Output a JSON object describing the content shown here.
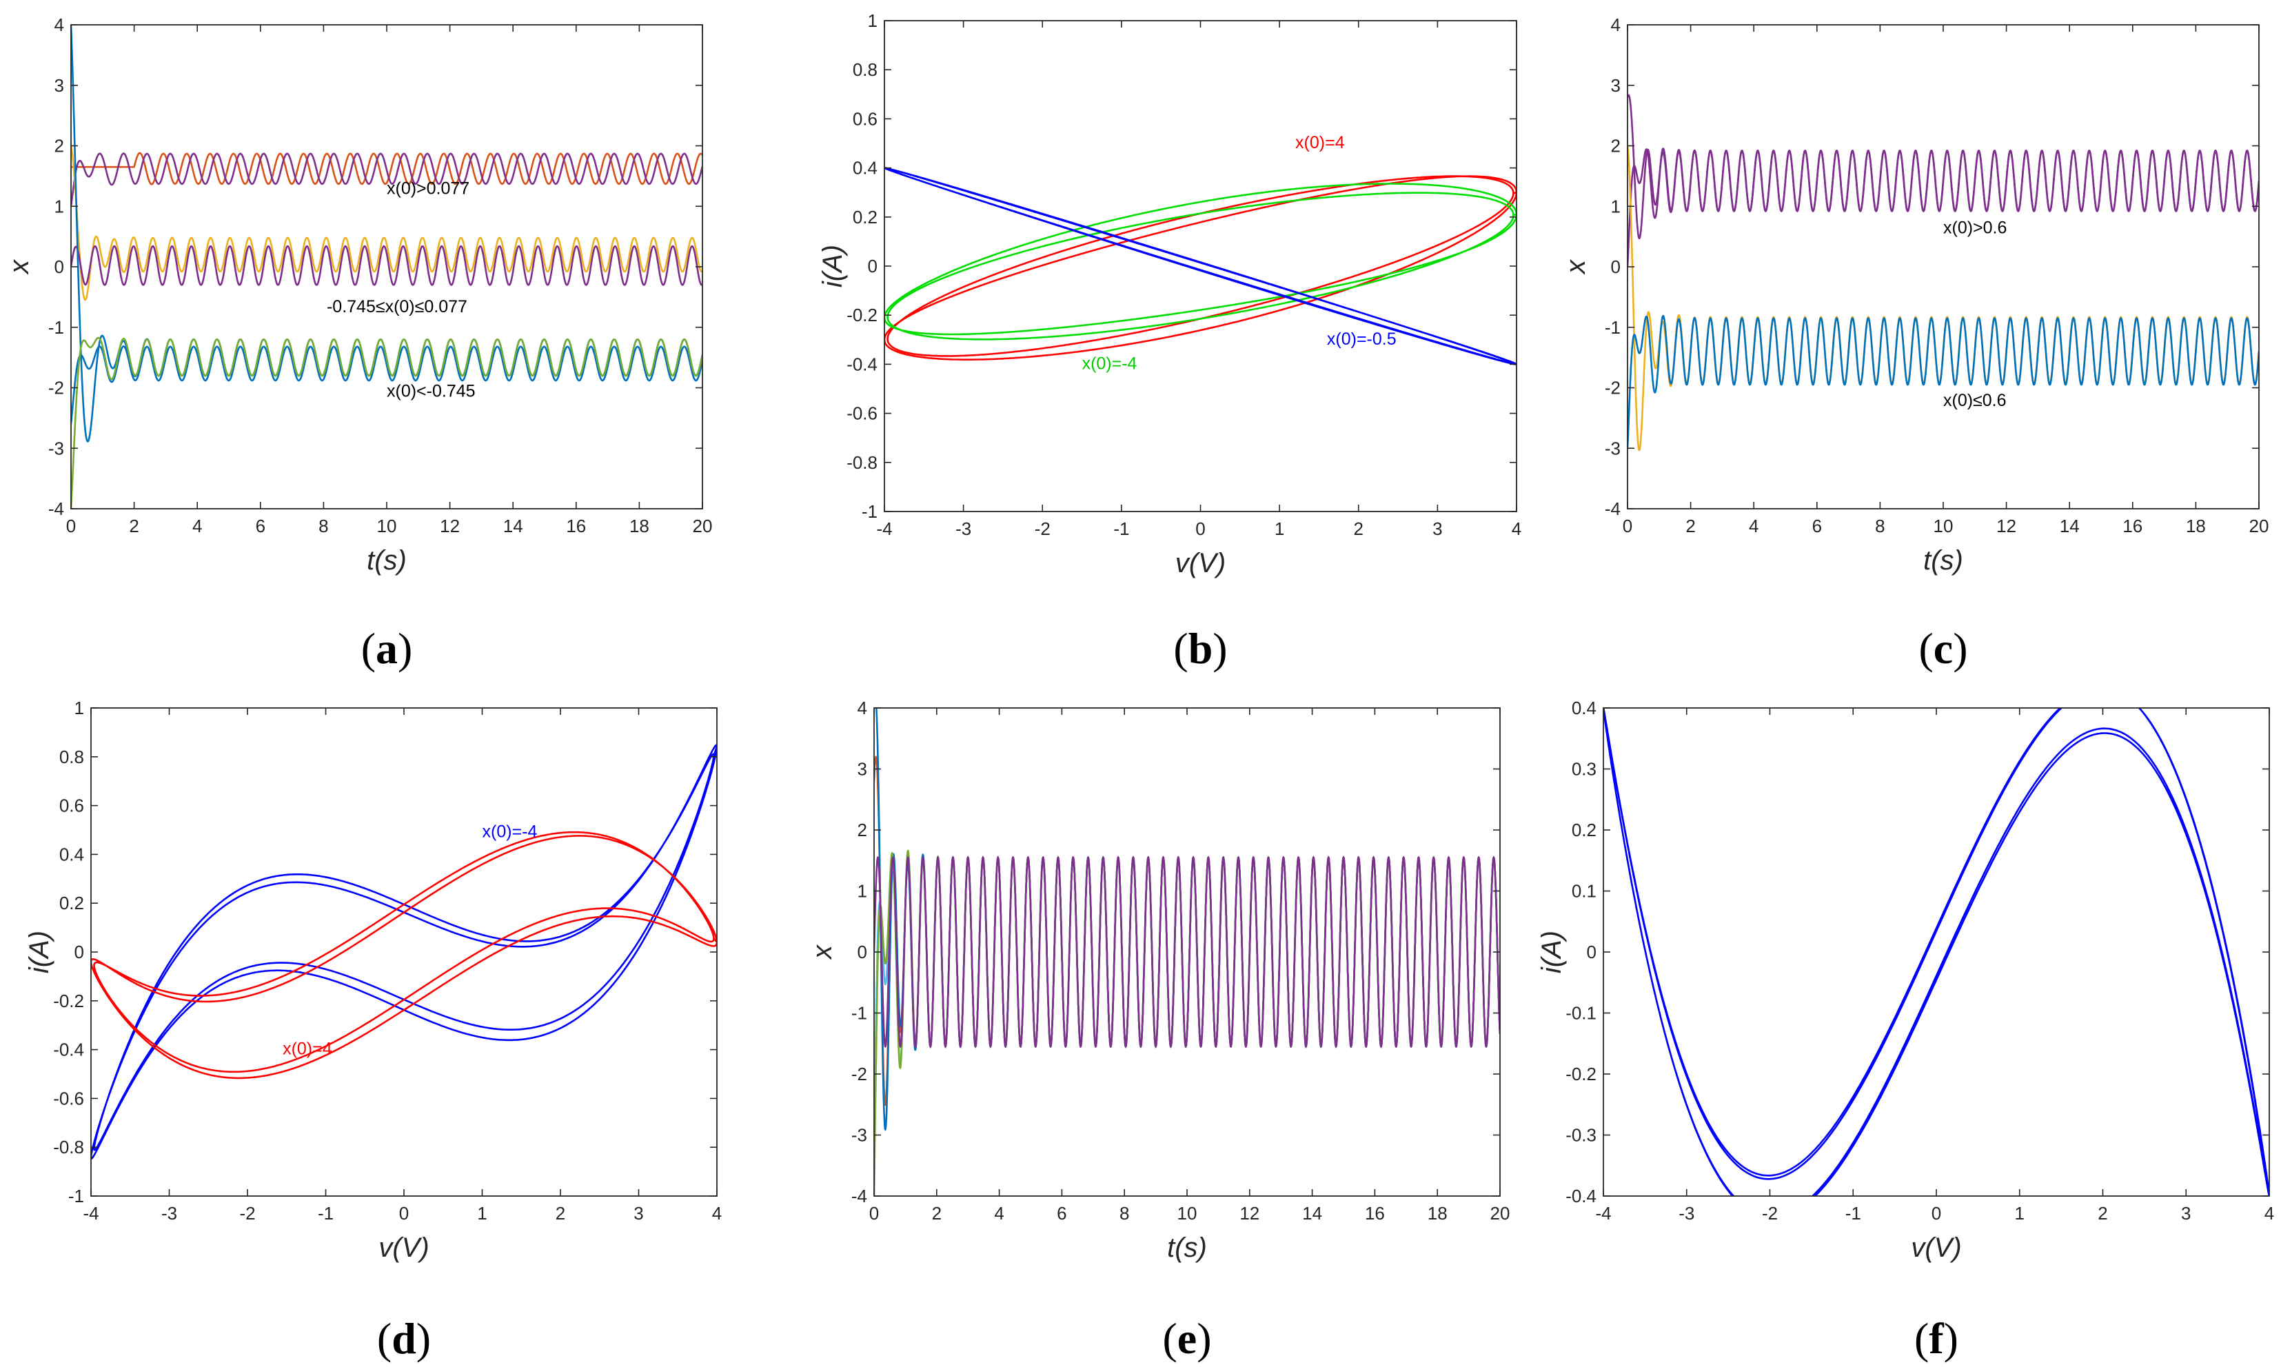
{
  "chart_data": [
    {
      "id": "a",
      "type": "line",
      "caption": "a",
      "xlabel": "t(s)",
      "ylabel": "x",
      "xlim": [
        0,
        20
      ],
      "ylim": [
        -4,
        4
      ],
      "xticks": [
        0,
        2,
        4,
        6,
        8,
        10,
        12,
        14,
        16,
        18,
        20
      ],
      "yticks": [
        -4,
        -3,
        -2,
        -1,
        0,
        1,
        2,
        3,
        4
      ],
      "grid": false,
      "series": [
        {
          "color": "#d95319",
          "equilibrium": 1.62,
          "amplitude": 0.25,
          "period": 0.74,
          "t_start": 2.0,
          "start_value": 1.65
        },
        {
          "color": "#7e2f8e",
          "equilibrium": 1.62,
          "amplitude": 0.25,
          "period": 0.74,
          "t_start": 0.0,
          "start_value": 1.0
        },
        {
          "color": "#edb120",
          "equilibrium": 0.2,
          "amplitude": 0.28,
          "period": 0.61,
          "t_start": 0.0,
          "start_value": 2.0
        },
        {
          "color": "#7e2f8e",
          "equilibrium": 0.02,
          "amplitude": 0.32,
          "period": 0.61,
          "t_start": 0.0,
          "start_value": 0.0
        },
        {
          "color": "#0072bd",
          "equilibrium": -1.6,
          "amplitude": 0.28,
          "period": 0.74,
          "t_start": 0.0,
          "start_value": -2.6
        },
        {
          "color": "#0072bd",
          "equilibrium": -1.5,
          "amplitude": 0.3,
          "period": 0.74,
          "t_start": 0.0,
          "start_value": 4.0
        },
        {
          "color": "#77ac30",
          "equilibrium": -1.5,
          "amplitude": 0.3,
          "period": 0.74,
          "t_start": 0.0,
          "start_value": -4.0
        }
      ],
      "annotations": [
        {
          "text": "x(0)>0.077",
          "x": 10.0,
          "y": 1.2,
          "color": "#000000"
        },
        {
          "text": "-0.745≤x(0)≤0.077",
          "x": 8.1,
          "y": -0.75,
          "color": "#000000"
        },
        {
          "text": "x(0)<-0.745",
          "x": 10.0,
          "y": -2.15,
          "color": "#000000"
        }
      ]
    },
    {
      "id": "b",
      "type": "line",
      "caption": "b",
      "xlabel": "v(V)",
      "ylabel": "i(A)",
      "xlim": [
        -4,
        4
      ],
      "ylim": [
        -1,
        1
      ],
      "xticks": [
        -4,
        -3,
        -2,
        -1,
        0,
        1,
        2,
        3,
        4
      ],
      "yticks": [
        -1,
        -0.8,
        -0.6,
        -0.4,
        -0.2,
        0,
        0.2,
        0.4,
        0.6,
        0.8,
        1
      ],
      "grid": false,
      "series": [
        {
          "color": "#ff0000",
          "cubic": 0.0,
          "linear": 0.075,
          "loop": 0.055,
          "phase_deg": 70
        },
        {
          "color": "#00dd00",
          "cubic": 0.0,
          "linear": 0.0525,
          "loop": 0.055,
          "phase_deg": -70
        },
        {
          "color": "#0000ff",
          "cubic": 0.0,
          "linear": -0.1,
          "loop": 0.004,
          "phase_deg": 45
        }
      ],
      "annotations": [
        {
          "text": "x(0)=4",
          "x": 1.2,
          "y": 0.48,
          "color": "#ff0000"
        },
        {
          "text": "x(0)=-4",
          "x": -1.5,
          "y": -0.42,
          "color": "#00cc00"
        },
        {
          "text": "x(0)=-0.5",
          "x": 1.6,
          "y": -0.32,
          "color": "#0000ff"
        }
      ]
    },
    {
      "id": "c",
      "type": "line",
      "caption": "c",
      "xlabel": "t(s)",
      "ylabel": "x",
      "xlim": [
        0,
        20
      ],
      "ylim": [
        -4,
        4
      ],
      "xticks": [
        0,
        2,
        4,
        6,
        8,
        10,
        12,
        14,
        16,
        18,
        20
      ],
      "yticks": [
        -4,
        -3,
        -2,
        -1,
        0,
        1,
        2,
        3,
        4
      ],
      "grid": false,
      "series": [
        {
          "color": "#7e2f8e",
          "equilibrium": 1.42,
          "amplitude": 0.5,
          "period": 0.5,
          "t_start": 0.0,
          "start_value": 0.0
        },
        {
          "color": "#7e2f8e",
          "equilibrium": 1.42,
          "amplitude": 0.5,
          "period": 0.5,
          "t_start": 0.0,
          "start_value": 2.8
        },
        {
          "color": "#edb120",
          "equilibrium": -1.38,
          "amplitude": 0.55,
          "period": 0.5,
          "t_start": 0.0,
          "start_value": 2.0
        },
        {
          "color": "#0072bd",
          "equilibrium": -1.4,
          "amplitude": 0.55,
          "period": 0.5,
          "t_start": 0.0,
          "start_value": -3.0
        }
      ],
      "annotations": [
        {
          "text": "x(0)>0.6",
          "x": 10.0,
          "y": 0.55,
          "color": "#000000"
        },
        {
          "text": "x(0)≤0.6",
          "x": 10.0,
          "y": -2.3,
          "color": "#000000"
        }
      ]
    },
    {
      "id": "d",
      "type": "line",
      "caption": "d",
      "xlabel": "v(V)",
      "ylabel": "i(A)",
      "xlim": [
        -4,
        4
      ],
      "ylim": [
        -1,
        1
      ],
      "xticks": [
        -4,
        -3,
        -2,
        -1,
        0,
        1,
        2,
        3,
        4
      ],
      "yticks": [
        -1,
        -0.8,
        -0.6,
        -0.4,
        -0.2,
        0,
        0.2,
        0.4,
        0.6,
        0.8,
        1
      ],
      "grid": false,
      "series": [
        {
          "color": "#0000ff",
          "cubic": 0.0219,
          "linear": -0.14,
          "loop": 0.05,
          "phase_deg": 70
        },
        {
          "color": "#ff0000",
          "cubic": -0.0125,
          "linear": 0.21,
          "loop": 0.05,
          "phase_deg": 70
        }
      ],
      "annotations": [
        {
          "text": "x(0)=-4",
          "x": 1.0,
          "y": 0.47,
          "color": "#0000ff"
        },
        {
          "text": "x(0)=4",
          "x": -1.55,
          "y": -0.42,
          "color": "#ff0000"
        }
      ]
    },
    {
      "id": "e",
      "type": "line",
      "caption": "e",
      "xlabel": "t(s)",
      "ylabel": "x",
      "xlim": [
        0,
        20
      ],
      "ylim": [
        -4,
        4
      ],
      "xticks": [
        0,
        2,
        4,
        6,
        8,
        10,
        12,
        14,
        16,
        18,
        20
      ],
      "yticks": [
        -4,
        -3,
        -2,
        -1,
        0,
        1,
        2,
        3,
        4
      ],
      "grid": false,
      "series": [
        {
          "color": "#d95319",
          "equilibrium": 0.0,
          "amplitude": 1.55,
          "period": 0.48,
          "t_start": 0.0,
          "start_value": 2.8
        },
        {
          "color": "#4dbeee",
          "equilibrium": 0.0,
          "amplitude": 1.55,
          "period": 0.48,
          "t_start": 0.0,
          "start_value": -3.0
        },
        {
          "color": "#0072bd",
          "equilibrium": 0.0,
          "amplitude": 1.55,
          "period": 0.48,
          "t_start": 0.0,
          "start_value": 4.0
        },
        {
          "color": "#77ac30",
          "equilibrium": 0.0,
          "amplitude": 1.55,
          "period": 0.48,
          "t_start": 0.0,
          "start_value": -4.0
        },
        {
          "color": "#7e2f8e",
          "equilibrium": 0.0,
          "amplitude": 1.55,
          "period": 0.48,
          "t_start": 0.0,
          "start_value": 0.0
        }
      ],
      "annotations": []
    },
    {
      "id": "f",
      "type": "line",
      "caption": "f",
      "xlabel": "v(V)",
      "ylabel": "i(A)",
      "xlim": [
        -4,
        4
      ],
      "ylim": [
        -0.4,
        0.4
      ],
      "xticks": [
        -4,
        -3,
        -2,
        -1,
        0,
        1,
        2,
        3,
        4
      ],
      "yticks": [
        -0.4,
        -0.3,
        -0.2,
        -0.1,
        0,
        0.1,
        0.2,
        0.3,
        0.4
      ],
      "grid": false,
      "series": [
        {
          "color": "#0000ff",
          "cubic": -0.025,
          "linear": 0.3,
          "loop": 0.01,
          "phase_deg": 45
        }
      ],
      "annotations": []
    }
  ]
}
